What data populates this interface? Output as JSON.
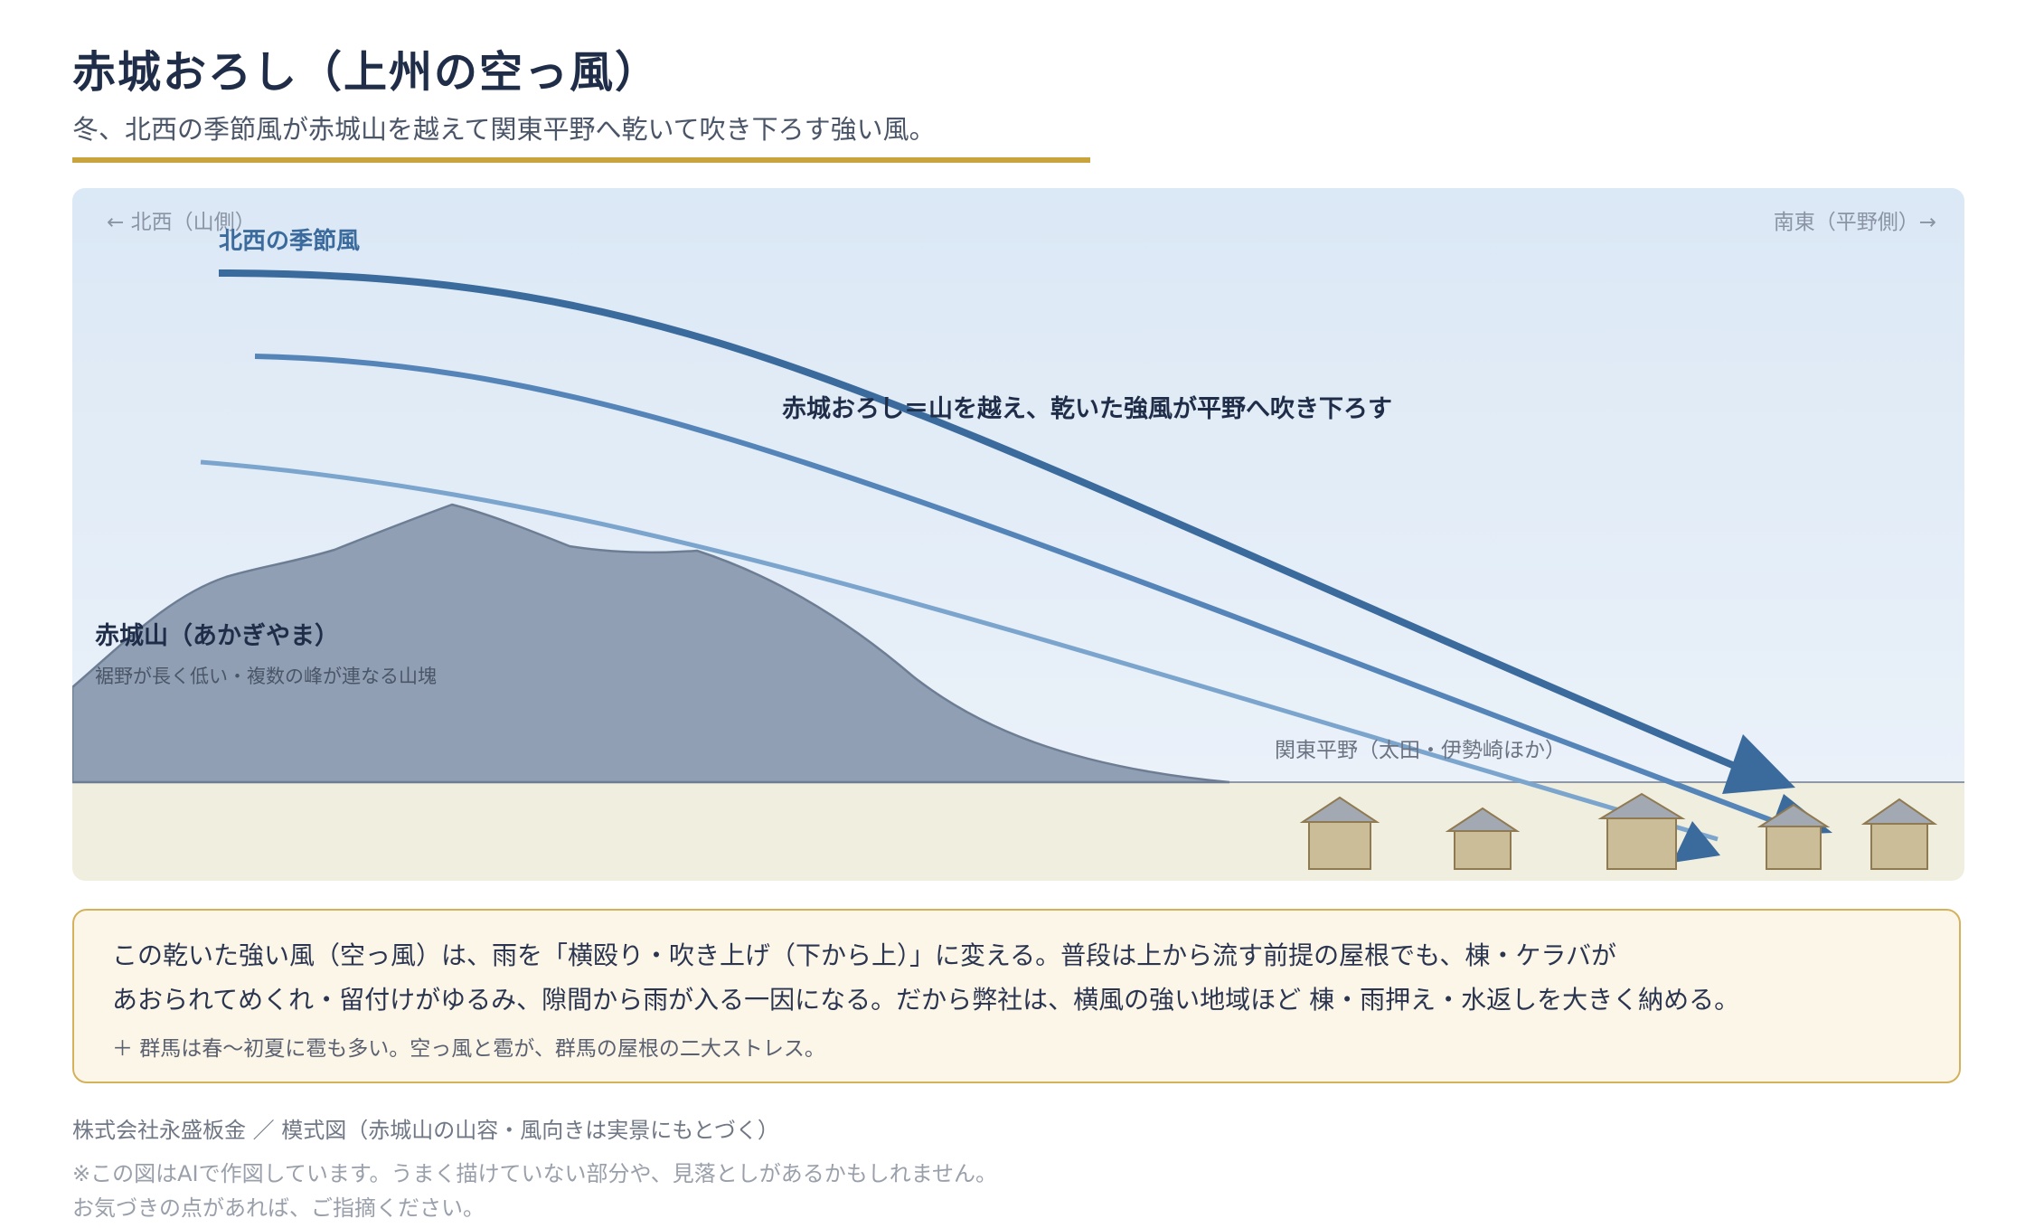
{
  "header": {
    "title": "赤城おろし（上州の空っ風）",
    "subtitle": "冬、北西の季節風が赤城山を越えて関東平野へ乾いて吹き下ろす強い風。"
  },
  "diagram": {
    "direction_left": "← 北西（山側）",
    "direction_right": "南東（平野側）→",
    "wind_label": "北西の季節風",
    "main_label": "赤城おろし＝山を越え、乾いた強風が平野へ吹き下ろす",
    "mountain_name": "赤城山（あかぎやま）",
    "mountain_desc": "裾野が長く低い・複数の峰が連なる山塊",
    "plain_label": "関東平野（太田・伊勢崎ほか）",
    "colors": {
      "sky_top": "#dbe8f5",
      "sky_bottom": "#eaf1f9",
      "mountain": "#909fb3",
      "ground": "#f0efdf",
      "wind_strong": "#3b6a9c",
      "wind_mid": "#5585b8",
      "wind_light": "#7ca5cd",
      "house_wall": "#cbbd98",
      "house_roof": "#a3a9b3"
    }
  },
  "note": {
    "line1": "この乾いた強い風（空っ風）は、雨を「横殴り・吹き上げ（下から上）」に変える。普段は上から流す前提の屋根でも、棟・ケラバが",
    "line2": "あおられてめくれ・留付けがゆるみ、隙間から雨が入る一因になる。だから弊社は、横風の強い地域ほど 棟・雨押え・水返しを大きく納める。",
    "line3": "＋ 群馬は春〜初夏に雹も多い。空っ風と雹が、群馬の屋根の二大ストレス。"
  },
  "footer": {
    "credit": "株式会社永盛板金 ／ 模式図（赤城山の山容・風向きは実景にもとづく）",
    "disclaimer1": "※この図はAIで作図しています。うまく描けていない部分や、見落としがあるかもしれません。",
    "disclaimer2": "お気づきの点があれば、ご指摘ください。"
  }
}
